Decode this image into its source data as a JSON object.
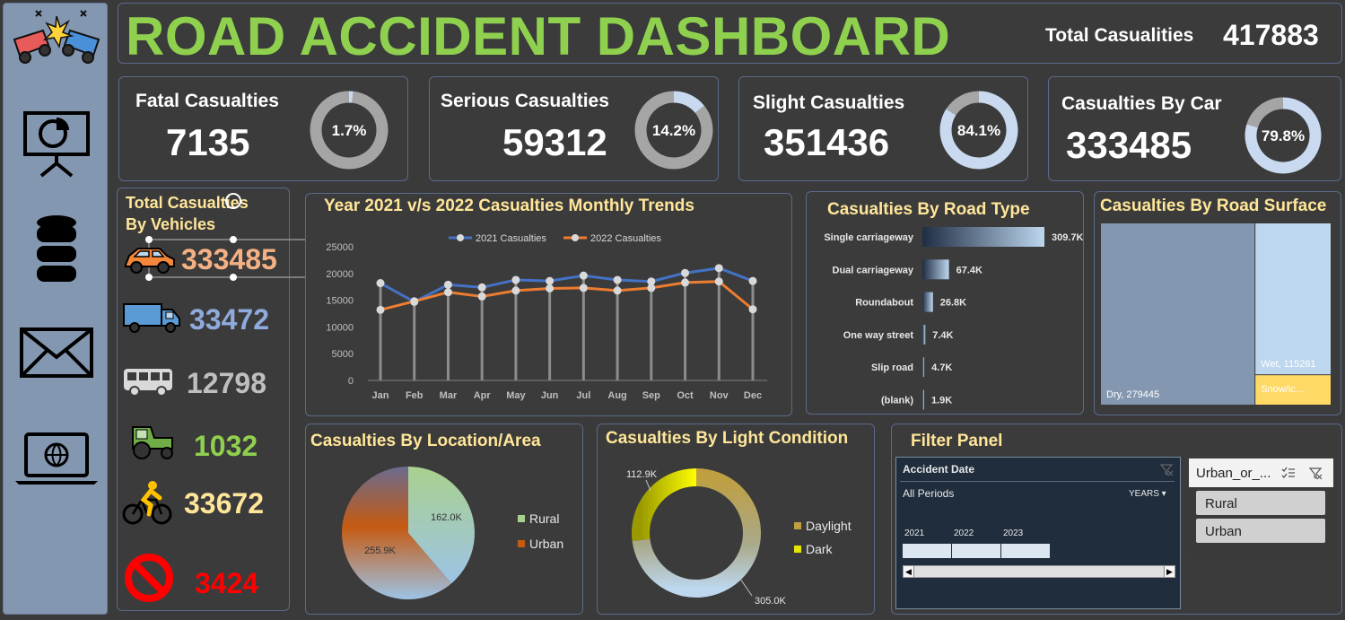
{
  "header": {
    "title": "ROAD ACCIDENT DASHBOARD",
    "total_label": "Total Casualities",
    "total_value": "417883"
  },
  "kpis": [
    {
      "title": "Fatal Casualties",
      "value": "7135",
      "pct_label": "1.7%",
      "pct": 1.7,
      "ring": "#d4d4d4",
      "track": "#a5a5a5",
      "fill": "#c9daf0"
    },
    {
      "title": "Serious Casualties",
      "value": "59312",
      "pct_label": "14.2%",
      "pct": 14.2,
      "ring": "#d4d4d4",
      "track": "#a5a5a5",
      "fill": "#c9daf0"
    },
    {
      "title": "Slight Casualties",
      "value": "351436",
      "pct_label": "84.1%",
      "pct": 84.1,
      "track": "#a5a5a5",
      "fill": "#c9daf0"
    },
    {
      "title": "Casualties By Car",
      "value": "333485",
      "pct_label": "79.8%",
      "pct": 79.8,
      "track": "#a5a5a5",
      "fill": "#c9daf0"
    }
  ],
  "vehicles": {
    "title_line1": "Total Casualties",
    "title_line2": "By Vehicles",
    "items": [
      {
        "icon": "car-icon",
        "value": "333485",
        "color": "#f4b183"
      },
      {
        "icon": "truck-icon",
        "value": "33472",
        "color": "#8faadc"
      },
      {
        "icon": "bus-icon",
        "value": "12798",
        "color": "#bfbfbf"
      },
      {
        "icon": "tractor-icon",
        "value": "1032",
        "color": "#8fd14f"
      },
      {
        "icon": "bicycle-icon",
        "value": "33672",
        "color": "#ffe699"
      },
      {
        "icon": "no-entry-icon",
        "value": "3424",
        "color": "#ff0000"
      }
    ]
  },
  "chart_data": [
    {
      "type": "line",
      "title": "Year 2021 v/s 2022 Casualties Monthly Trends",
      "categories": [
        "Jan",
        "Feb",
        "Mar",
        "Apr",
        "May",
        "Jun",
        "Jul",
        "Aug",
        "Sep",
        "Oct",
        "Nov",
        "Dec"
      ],
      "series": [
        {
          "name": "2021 Casualties",
          "color": "#4472c4",
          "values": [
            18200,
            14700,
            17900,
            17400,
            18800,
            18600,
            19600,
            18800,
            18500,
            20100,
            21000,
            18600
          ]
        },
        {
          "name": "2022 Casualties",
          "color": "#ed7d31",
          "values": [
            13200,
            14800,
            16500,
            15700,
            16800,
            17200,
            17300,
            16800,
            17300,
            18300,
            18500,
            13300
          ]
        }
      ],
      "y_ticks": [
        "0",
        "5000",
        "10000",
        "15000",
        "20000",
        "25000"
      ],
      "ylim": [
        0,
        25000
      ],
      "legend": "top",
      "grid": false
    },
    {
      "type": "bar",
      "orientation": "horizontal",
      "title": "Casualties By Road Type",
      "categories": [
        "Single carriageway",
        "Dual carriageway",
        "Roundabout",
        "One way street",
        "Slip road",
        "(blank)"
      ],
      "values": [
        309700,
        67400,
        26800,
        7400,
        4700,
        1900
      ],
      "labels": [
        "309.7K",
        "67.4K",
        "26.8K",
        "7.4K",
        "4.7K",
        "1.9K"
      ]
    },
    {
      "type": "treemap",
      "title": "Casualties By Road Surface",
      "items": [
        {
          "label": "Dry, 279445",
          "value": 279445,
          "color": "#8497b0"
        },
        {
          "label": "Wet, 115261",
          "value": 115261,
          "color": "#bdd7ee"
        },
        {
          "label": "Snow/ic...",
          "value": 23177,
          "color": "#ffd966"
        }
      ]
    },
    {
      "type": "pie",
      "title": "Casualties By Location/Area",
      "slices": [
        {
          "name": "Rural",
          "value": 162000,
          "label": "162.0K",
          "color": "#a9d18e"
        },
        {
          "name": "Urban",
          "value": 255900,
          "label": "255.9K",
          "color": "#c55a11"
        }
      ],
      "legend": "right"
    },
    {
      "type": "pie",
      "donut": true,
      "title": "Casualties By Light Condition",
      "slices": [
        {
          "name": "Daylight",
          "value": 305000,
          "label": "305.0K",
          "color": "#bf9f3f"
        },
        {
          "name": "Dark",
          "value": 112900,
          "label": "112.9K",
          "color": "#e6e600"
        }
      ],
      "legend": "right"
    }
  ],
  "filter_panel": {
    "title": "Filter Panel",
    "date_title": "Accident Date",
    "periods": "All Periods",
    "unit": "YEARS",
    "years": [
      "2021",
      "2022",
      "2023"
    ],
    "area_title": "Urban_or_...",
    "area_items": [
      "Rural",
      "Urban"
    ]
  }
}
